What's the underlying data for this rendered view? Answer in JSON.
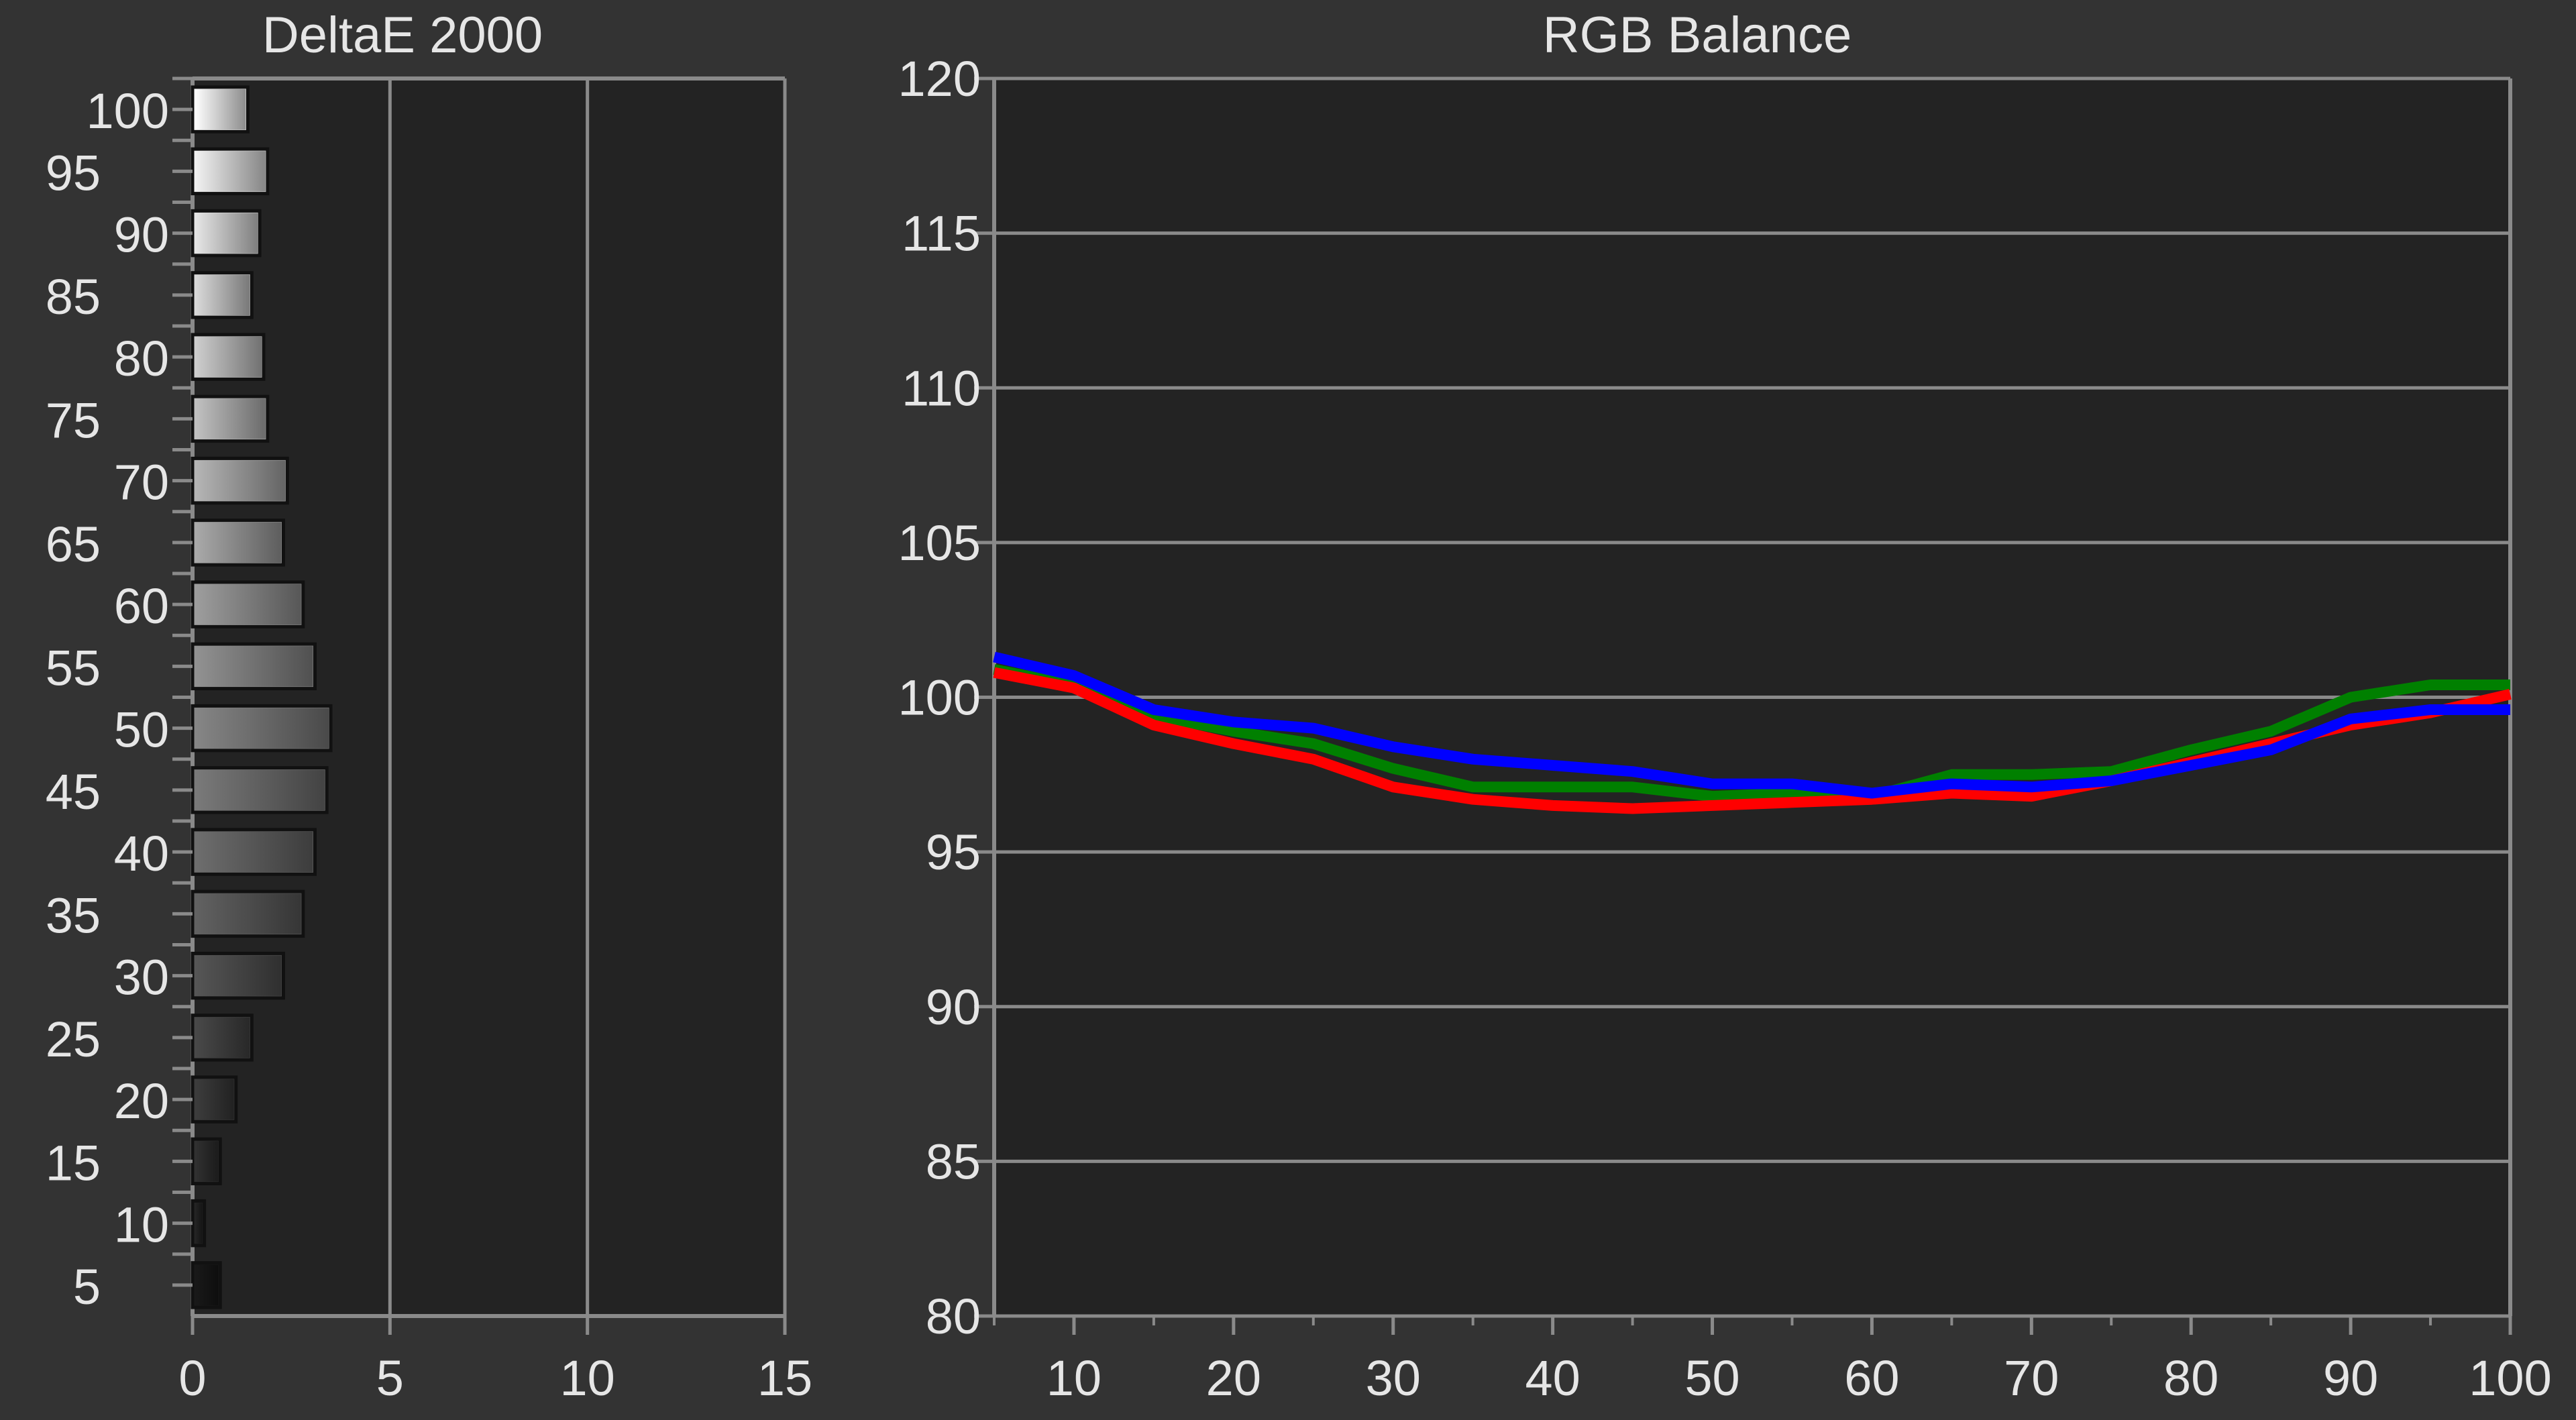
{
  "chart_data": [
    {
      "type": "bar",
      "orientation": "horizontal",
      "title": "DeltaE 2000",
      "categories": [
        5,
        10,
        15,
        20,
        25,
        30,
        35,
        40,
        45,
        50,
        55,
        60,
        65,
        70,
        75,
        80,
        85,
        90,
        95,
        100
      ],
      "values": [
        0.7,
        0.3,
        0.7,
        1.1,
        1.5,
        2.3,
        2.8,
        3.1,
        3.4,
        3.5,
        3.1,
        2.8,
        2.3,
        2.4,
        1.9,
        1.8,
        1.5,
        1.7,
        1.9,
        1.4
      ],
      "xlim": [
        0,
        15
      ],
      "xticks": [
        0,
        5,
        10,
        15
      ],
      "yticks": [
        5,
        10,
        15,
        20,
        25,
        30,
        35,
        40,
        45,
        50,
        55,
        60,
        65,
        70,
        75,
        80,
        85,
        90,
        95,
        100
      ],
      "grid": true,
      "colors": {
        "bar_light": "#ffffff",
        "bar_dark": "#151515"
      }
    },
    {
      "type": "line",
      "title": "RGB Balance",
      "x": [
        5,
        10,
        15,
        20,
        25,
        30,
        35,
        40,
        45,
        50,
        55,
        60,
        65,
        70,
        75,
        80,
        85,
        90,
        95,
        100
      ],
      "series": [
        {
          "color": "#008000",
          "values": [
            100.9,
            100.4,
            99.4,
            98.9,
            98.5,
            97.7,
            97.1,
            97.1,
            97.1,
            96.8,
            96.9,
            96.8,
            97.5,
            97.5,
            97.6,
            98.3,
            98.9,
            100.0,
            100.4,
            100.4
          ]
        },
        {
          "color": "#ff0000",
          "values": [
            100.8,
            100.3,
            99.1,
            98.5,
            98.0,
            97.1,
            96.7,
            96.5,
            96.4,
            96.5,
            96.6,
            96.7,
            96.9,
            96.8,
            97.3,
            97.9,
            98.5,
            99.1,
            99.5,
            100.1
          ]
        },
        {
          "color": "#0000ff",
          "values": [
            101.3,
            100.7,
            99.6,
            99.2,
            99.0,
            98.4,
            98.0,
            97.8,
            97.6,
            97.2,
            97.2,
            96.9,
            97.2,
            97.1,
            97.3,
            97.8,
            98.3,
            99.3,
            99.6,
            99.6
          ]
        }
      ],
      "xlim": [
        5,
        100
      ],
      "ylim": [
        80,
        120
      ],
      "xticks": [
        10,
        20,
        30,
        40,
        50,
        60,
        70,
        80,
        90,
        100
      ],
      "yticks": [
        80,
        85,
        90,
        95,
        100,
        105,
        110,
        115,
        120
      ],
      "grid": true
    }
  ]
}
